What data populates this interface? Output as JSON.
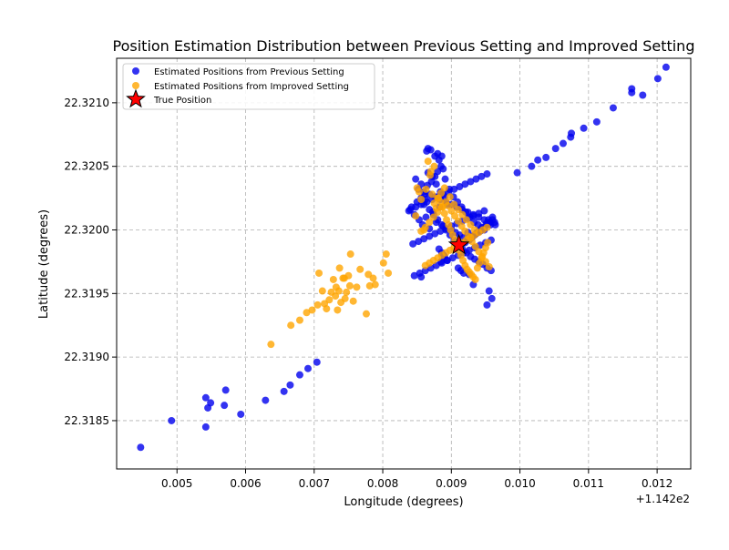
{
  "chart_data": {
    "type": "scatter",
    "title": "Position Estimation Distribution between Previous Setting and Improved Setting",
    "xlabel": "Longitude (degrees)",
    "ylabel": "Latitude (degrees)",
    "x_offset_label": "+1.142e2",
    "xlim": [
      114.20412,
      114.21249
    ],
    "ylim": [
      22.31812,
      22.32135
    ],
    "x_ticks": [
      114.205,
      114.206,
      114.207,
      114.208,
      114.209,
      114.21,
      114.211,
      114.212
    ],
    "x_tick_labels": [
      "0.005",
      "0.006",
      "0.007",
      "0.008",
      "0.009",
      "0.010",
      "0.011",
      "0.012"
    ],
    "y_ticks": [
      22.3185,
      22.319,
      22.3195,
      22.32,
      22.3205,
      22.321
    ],
    "y_tick_labels": [
      "22.3185",
      "22.3190",
      "22.3195",
      "22.3200",
      "22.3205",
      "22.3210"
    ],
    "grid": true,
    "legend_position": "top-left",
    "series": [
      {
        "name": "Estimated Positions from Previous Setting",
        "color": "#0000ee",
        "marker": "circle",
        "x": [
          114.20447,
          114.20492,
          114.20542,
          114.20545,
          114.20542,
          114.20549,
          114.20569,
          114.20571,
          114.20593,
          114.20629,
          114.20656,
          114.20665,
          114.20679,
          114.20691,
          114.20704,
          114.20856,
          114.20885,
          114.20889,
          114.20926,
          114.20932,
          114.20955,
          114.20952,
          114.20959,
          114.20996,
          114.21017,
          114.21026,
          114.21038,
          114.21052,
          114.21063,
          114.21074,
          114.21075,
          114.21093,
          114.21112,
          114.21136,
          114.21163,
          114.21163,
          114.21179,
          114.21201,
          114.21213,
          114.20838,
          114.20842,
          114.20846,
          114.2085,
          114.20853,
          114.20856,
          114.20858,
          114.20861,
          114.20863,
          114.20865,
          114.20868,
          114.20871,
          114.20873,
          114.20876,
          114.20878,
          114.2088,
          114.20883,
          114.20885,
          114.20888,
          114.20891,
          114.20894,
          114.20897,
          114.209,
          114.20903,
          114.20906,
          114.20909,
          114.20912,
          114.20915,
          114.20918,
          114.20921,
          114.20924,
          114.20927,
          114.2093,
          114.20933,
          114.20936,
          114.20939,
          114.20942,
          114.20945,
          114.20948,
          114.20951,
          114.20954,
          114.20957,
          114.2096,
          114.20963,
          114.20864,
          114.2087,
          114.20876,
          114.20882,
          114.20888,
          114.20866,
          114.20872,
          114.20878,
          114.20884,
          114.2089,
          114.2086,
          114.20868,
          114.20874,
          114.2088,
          114.20886,
          114.20892,
          114.20898,
          114.20904,
          114.2091,
          114.20916,
          114.20922,
          114.20928,
          114.20934,
          114.2094,
          114.20946,
          114.20952,
          114.20958,
          114.20958,
          114.2095,
          114.20942,
          114.20934,
          114.20926,
          114.20918,
          114.2091,
          114.20902,
          114.20894,
          114.20886,
          114.20878,
          114.2087,
          114.20862,
          114.20854,
          114.20846,
          114.20852,
          114.2086,
          114.20868,
          114.20876,
          114.20884,
          114.20892,
          114.209,
          114.20908,
          114.20916,
          114.20924,
          114.20932,
          114.2094,
          114.20948,
          114.20956,
          114.20964,
          114.20948,
          114.2094,
          114.20932,
          114.20924,
          114.20916,
          114.20908,
          114.209,
          114.20892,
          114.20884,
          114.20876,
          114.20868,
          114.2086,
          114.20852,
          114.20844,
          114.2084,
          114.20848,
          114.20856,
          114.20864,
          114.20872,
          114.2088,
          114.20888,
          114.20896,
          114.20904,
          114.20912,
          114.2092,
          114.20928,
          114.20936,
          114.20944,
          114.20952,
          114.20882,
          114.20886,
          114.2089,
          114.20894,
          114.2092,
          114.20926,
          114.2093,
          114.20934,
          114.20938,
          114.20942,
          114.20948,
          114.20952,
          114.20956,
          114.2096,
          114.2091,
          114.20914,
          114.20918,
          114.20886,
          114.2088,
          114.20866,
          114.20848,
          114.20856,
          114.20862
        ],
        "y": [
          22.31829,
          22.3185,
          22.31845,
          22.3186,
          22.31868,
          22.31864,
          22.31862,
          22.31874,
          22.31855,
          22.31866,
          22.31873,
          22.31878,
          22.31886,
          22.31891,
          22.31896,
          22.31963,
          22.31975,
          22.3198,
          22.31965,
          22.31957,
          22.31952,
          22.31941,
          22.31946,
          22.32045,
          22.3205,
          22.32055,
          22.32057,
          22.32064,
          22.32068,
          22.32073,
          22.32076,
          22.3208,
          22.32085,
          22.32096,
          22.32108,
          22.32111,
          22.32106,
          22.32119,
          22.32128,
          22.32015,
          22.32018,
          22.32012,
          22.32022,
          22.32008,
          22.32025,
          22.32004,
          22.32028,
          22.3201,
          22.32035,
          22.32001,
          22.32038,
          22.32014,
          22.32042,
          22.32006,
          22.32046,
          22.32018,
          22.3205,
          22.32003,
          22.3204,
          22.3202,
          22.32032,
          22.32,
          22.32026,
          22.31998,
          22.32022,
          22.31996,
          22.32018,
          22.31994,
          22.32014,
          22.31998,
          22.3201,
          22.31995,
          22.32006,
          22.31997,
          22.32004,
          22.31999,
          22.32002,
          22.32,
          22.32005,
          22.32008,
          22.32004,
          22.3201,
          22.32006,
          22.32062,
          22.32063,
          22.32058,
          22.32055,
          22.32048,
          22.32045,
          22.32042,
          22.32036,
          22.3203,
          22.32026,
          22.3202,
          22.32016,
          22.32012,
          22.32008,
          22.32004,
          22.32,
          22.31996,
          22.31992,
          22.31988,
          22.31985,
          22.31982,
          22.31979,
          22.31977,
          22.31975,
          22.31973,
          22.3197,
          22.31968,
          22.31992,
          22.3199,
          22.31988,
          22.31986,
          22.31984,
          22.31982,
          22.3198,
          22.31978,
          22.31976,
          22.31974,
          22.31972,
          22.3197,
          22.31968,
          22.31966,
          22.31964,
          22.32032,
          22.3203,
          22.32028,
          22.32026,
          22.32024,
          22.32022,
          22.3202,
          22.32018,
          22.32016,
          22.32014,
          22.32012,
          22.3201,
          22.32008,
          22.32006,
          22.32004,
          22.32015,
          22.32013,
          22.32011,
          22.32009,
          22.32007,
          22.32005,
          22.32003,
          22.32001,
          22.31999,
          22.31997,
          22.31995,
          22.31993,
          22.31991,
          22.31989,
          22.32016,
          22.32018,
          22.3202,
          22.32022,
          22.32024,
          22.32026,
          22.32028,
          22.3203,
          22.32032,
          22.32034,
          22.32036,
          22.32038,
          22.3204,
          22.32042,
          22.32044,
          22.31985,
          22.31982,
          22.31979,
          22.31976,
          22.3199,
          22.31992,
          22.31994,
          22.31996,
          22.31998,
          22.32,
          22.32002,
          22.32004,
          22.32006,
          22.32008,
          22.3197,
          22.31968,
          22.31966,
          22.32058,
          22.3206,
          22.32064,
          22.3204,
          22.32036,
          22.32024
        ]
      },
      {
        "name": "Estimated Positions from Improved Setting",
        "color": "#ffa500",
        "marker": "circle",
        "x": [
          114.20637,
          114.20666,
          114.20679,
          114.20689,
          114.20697,
          114.20707,
          114.20712,
          114.20715,
          114.20718,
          114.20705,
          114.20722,
          114.20728,
          114.20732,
          114.20734,
          114.20737,
          114.20742,
          114.20745,
          114.20747,
          114.2075,
          114.20753,
          114.20757,
          114.20762,
          114.20767,
          114.20776,
          114.20779,
          114.20781,
          114.20786,
          114.20789,
          114.20801,
          114.20805,
          114.20808,
          114.20752,
          114.20736,
          114.20725,
          114.20731,
          114.20739,
          114.20744,
          114.2085,
          114.20853,
          114.20848,
          114.20856,
          114.2086,
          114.20863,
          114.20866,
          114.20869,
          114.20872,
          114.20875,
          114.20878,
          114.20881,
          114.20884,
          114.20887,
          114.2089,
          114.20893,
          114.20896,
          114.20899,
          114.20902,
          114.20905,
          114.20908,
          114.20911,
          114.20914,
          114.20917,
          114.2092,
          114.20923,
          114.20926,
          114.20929,
          114.20932,
          114.20935,
          114.20938,
          114.20941,
          114.20944,
          114.20947,
          114.2095,
          114.20953,
          114.20856,
          114.20862,
          114.20868,
          114.20874,
          114.2088,
          114.20886,
          114.20892,
          114.20898,
          114.20904,
          114.2091,
          114.20916,
          114.20922,
          114.20928,
          114.20934,
          114.2087,
          114.20875,
          114.2088,
          114.20885,
          114.2089,
          114.20895,
          114.209,
          114.20905,
          114.2091,
          114.20915,
          114.2092,
          114.20925,
          114.2093,
          114.20935,
          114.2094,
          114.20945,
          114.2095,
          114.20955,
          114.20862,
          114.20868,
          114.20874,
          114.2088,
          114.20886,
          114.20892,
          114.20898,
          114.20904,
          114.2091,
          114.20916,
          114.20922,
          114.20928,
          114.20934,
          114.2094,
          114.20946,
          114.20952
        ],
        "y": [
          22.3191,
          22.31925,
          22.31929,
          22.31935,
          22.31937,
          22.31966,
          22.31952,
          22.31942,
          22.31938,
          22.31941,
          22.31945,
          22.31961,
          22.31955,
          22.31937,
          22.3197,
          22.31962,
          22.31946,
          22.31951,
          22.31964,
          22.31981,
          22.31944,
          22.31955,
          22.31969,
          22.31934,
          22.31965,
          22.31956,
          22.31962,
          22.31957,
          22.31974,
          22.31981,
          22.31966,
          22.31956,
          22.31952,
          22.31951,
          22.31948,
          22.31943,
          22.31962,
          22.32033,
          22.3203,
          22.32011,
          22.32024,
          22.32,
          22.32032,
          22.32054,
          22.32043,
          22.32028,
          22.32021,
          22.32017,
          22.32025,
          22.32022,
          22.32018,
          22.32013,
          22.32008,
          22.32004,
          22.32,
          22.31996,
          22.31992,
          22.31988,
          22.31984,
          22.3198,
          22.31976,
          22.31972,
          22.31969,
          22.31967,
          22.31965,
          22.31963,
          22.31961,
          22.3197,
          22.31974,
          22.31978,
          22.31982,
          22.31986,
          22.3199,
          22.31999,
          22.32002,
          22.32006,
          22.3201,
          22.32014,
          22.32018,
          22.32022,
          22.32026,
          22.3202,
          22.32016,
          22.32012,
          22.32008,
          22.32004,
          22.32,
          22.32046,
          22.3205,
          22.32025,
          22.32029,
          22.32033,
          22.32019,
          22.32015,
          22.32011,
          22.32007,
          22.32003,
          22.31999,
          22.31995,
          22.31991,
          22.31987,
          22.31983,
          22.31979,
          22.31975,
          22.31971,
          22.31972,
          22.31974,
          22.31976,
          22.31978,
          22.3198,
          22.31982,
          22.31984,
          22.31986,
          22.31988,
          22.3199,
          22.31992,
          22.31994,
          22.31996,
          22.31998,
          22.32,
          22.32002
        ]
      },
      {
        "name": "True Position",
        "color": "#ff0000",
        "marker": "star",
        "x": [
          114.20911
        ],
        "y": [
          22.31988
        ]
      }
    ]
  }
}
